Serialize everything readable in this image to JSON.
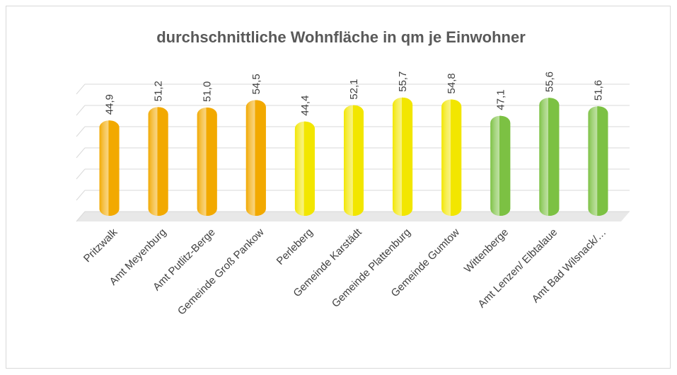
{
  "chart_data": {
    "type": "bar",
    "title": "durchschnittliche Wohnfläche in qm je Einwohner",
    "categories": [
      "Pritzwalk",
      "Amt Meyenburg",
      "Amt Putlitz-Berge",
      "Gemeinde Groß Pankow",
      "Perleberg",
      "Gemeinde Karstädt",
      "Gemeinde Plattenburg",
      "Gemeinde Gumtow",
      "Wittenberge",
      "Amt Lenzen/ Elbtalaue",
      "Amt Bad Wilsnack/…"
    ],
    "values": [
      44.9,
      51.2,
      51.0,
      54.5,
      44.4,
      52.1,
      55.7,
      54.8,
      47.1,
      55.6,
      51.6
    ],
    "value_labels": [
      "44,9",
      "51,2",
      "51,0",
      "54,5",
      "44,4",
      "52,1",
      "55,7",
      "54,8",
      "47,1",
      "55,6",
      "51,6"
    ],
    "colors": [
      "#f2a900",
      "#f2a900",
      "#f2a900",
      "#f2a900",
      "#f2e600",
      "#f2e600",
      "#f2e600",
      "#f2e600",
      "#7cc143",
      "#7cc143",
      "#7cc143"
    ],
    "ylim": [
      0,
      60
    ],
    "yticks": [
      0,
      10,
      20,
      30,
      40,
      50,
      60
    ],
    "grid": true
  }
}
